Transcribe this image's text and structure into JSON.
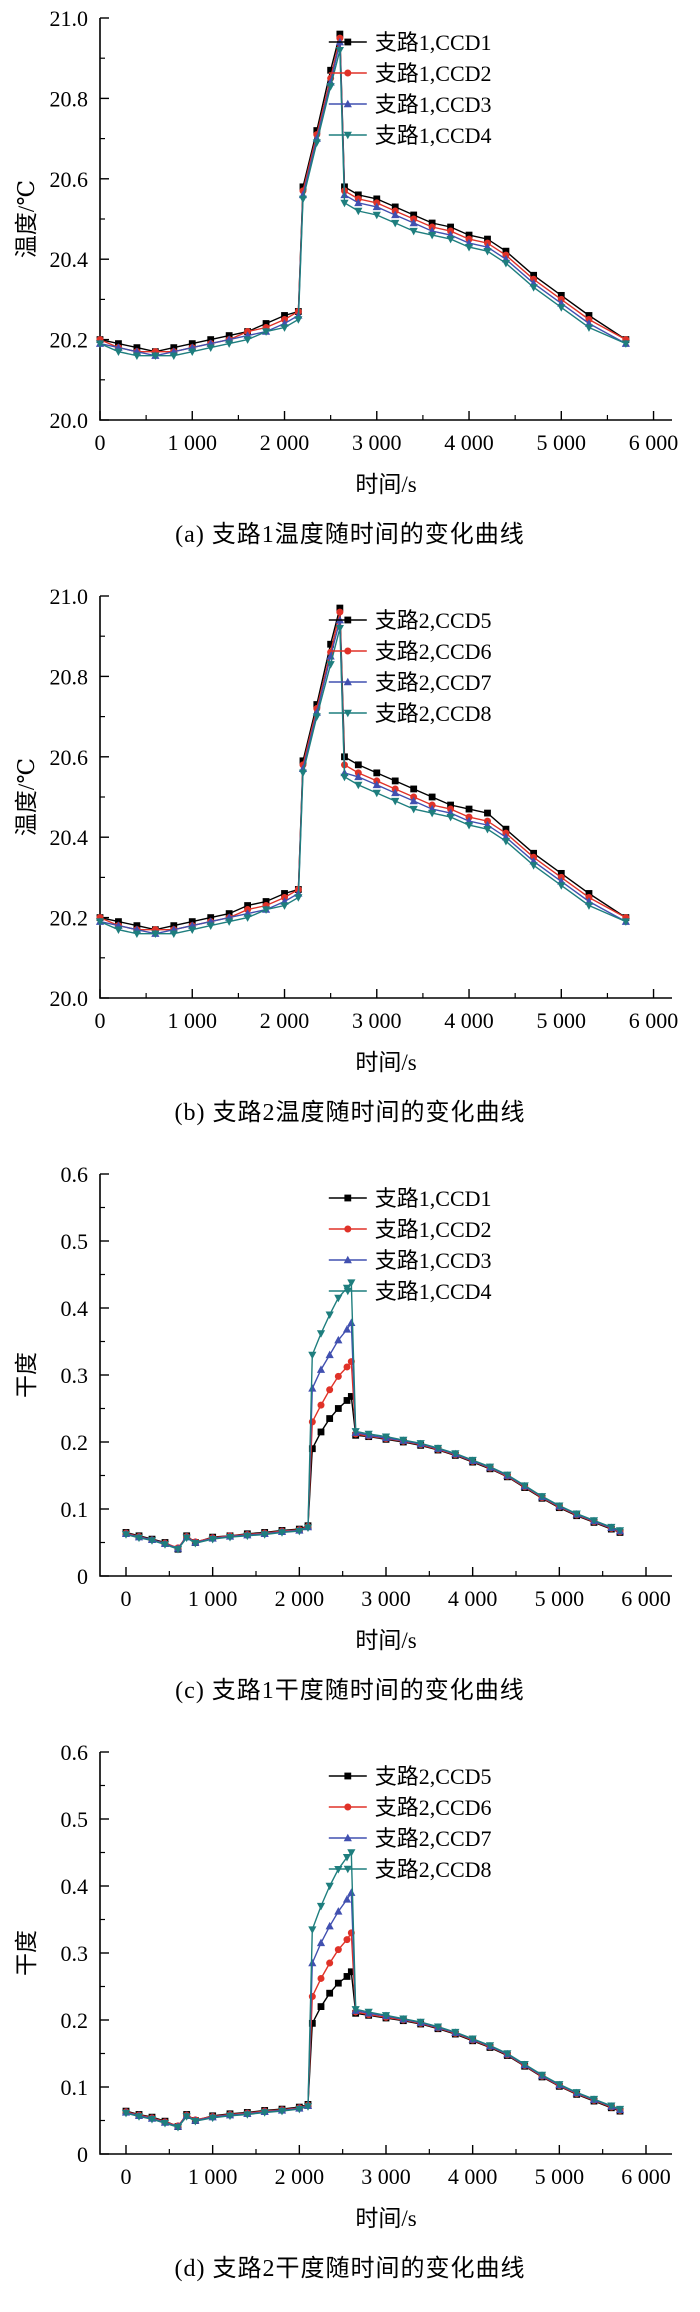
{
  "chart_data": [
    {
      "type": "line",
      "caption": "(a) 支路1温度随时间的变化曲线",
      "xlabel": "时间/s",
      "ylabel": "温度/℃",
      "xlim": [
        0,
        6200
      ],
      "ylim": [
        20.0,
        21.0
      ],
      "xticks": [
        0,
        1000,
        2000,
        3000,
        4000,
        5000,
        6000
      ],
      "xtick_labels": [
        "0",
        "1 000",
        "2 000",
        "3 000",
        "4 000",
        "5 000",
        "6 000"
      ],
      "yticks": [
        20.0,
        20.2,
        20.4,
        20.6,
        20.8,
        21.0
      ],
      "ytick_labels": [
        "20.0",
        "20.2",
        "20.4",
        "20.6",
        "20.8",
        "21.0"
      ],
      "legend_position": "top-right",
      "grid": false,
      "x": [
        0,
        200,
        400,
        600,
        800,
        1000,
        1200,
        1400,
        1600,
        1800,
        2000,
        2150,
        2200,
        2350,
        2500,
        2600,
        2650,
        2800,
        3000,
        3200,
        3400,
        3600,
        3800,
        4000,
        4200,
        4400,
        4700,
        5000,
        5300,
        5700
      ],
      "series": [
        {
          "name": "支路1,CCD1",
          "color": "#000000",
          "marker": "square",
          "values": [
            20.2,
            20.19,
            20.18,
            20.17,
            20.18,
            20.19,
            20.2,
            20.21,
            20.22,
            20.24,
            20.26,
            20.27,
            20.58,
            20.72,
            20.87,
            20.96,
            20.58,
            20.56,
            20.55,
            20.53,
            20.51,
            20.49,
            20.48,
            20.46,
            20.45,
            20.42,
            20.36,
            20.31,
            20.26,
            20.2
          ]
        },
        {
          "name": "支路1,CCD2",
          "color": "#e03228",
          "marker": "circle",
          "values": [
            20.2,
            20.18,
            20.17,
            20.17,
            20.17,
            20.18,
            20.19,
            20.2,
            20.22,
            20.23,
            20.25,
            20.27,
            20.57,
            20.71,
            20.85,
            20.95,
            20.57,
            20.55,
            20.54,
            20.52,
            20.5,
            20.48,
            20.47,
            20.45,
            20.44,
            20.41,
            20.35,
            20.3,
            20.25,
            20.2
          ]
        },
        {
          "name": "支路1,CCD3",
          "color": "#4150b0",
          "marker": "triangle-up",
          "values": [
            20.19,
            20.18,
            20.17,
            20.16,
            20.17,
            20.18,
            20.19,
            20.2,
            20.21,
            20.22,
            20.24,
            20.26,
            20.56,
            20.7,
            20.84,
            20.94,
            20.56,
            20.54,
            20.53,
            20.51,
            20.49,
            20.47,
            20.46,
            20.44,
            20.43,
            20.4,
            20.34,
            20.29,
            20.24,
            20.19
          ]
        },
        {
          "name": "支路1,CCD4",
          "color": "#1e7e7e",
          "marker": "triangle-down",
          "values": [
            20.19,
            20.17,
            20.16,
            20.16,
            20.16,
            20.17,
            20.18,
            20.19,
            20.2,
            20.22,
            20.23,
            20.25,
            20.55,
            20.69,
            20.83,
            20.92,
            20.54,
            20.52,
            20.51,
            20.49,
            20.47,
            20.46,
            20.45,
            20.43,
            20.42,
            20.39,
            20.33,
            20.28,
            20.23,
            20.19
          ]
        }
      ]
    },
    {
      "type": "line",
      "caption": "(b)  支路2温度随时间的变化曲线",
      "xlabel": "时间/s",
      "ylabel": "温度/℃",
      "xlim": [
        0,
        6200
      ],
      "ylim": [
        20.0,
        21.0
      ],
      "xticks": [
        0,
        1000,
        2000,
        3000,
        4000,
        5000,
        6000
      ],
      "xtick_labels": [
        "0",
        "1 000",
        "2 000",
        "3 000",
        "4 000",
        "5 000",
        "6 000"
      ],
      "yticks": [
        20.0,
        20.2,
        20.4,
        20.6,
        20.8,
        21.0
      ],
      "ytick_labels": [
        "20.0",
        "20.2",
        "20.4",
        "20.6",
        "20.8",
        "21.0"
      ],
      "legend_position": "top-right",
      "grid": false,
      "x": [
        0,
        200,
        400,
        600,
        800,
        1000,
        1200,
        1400,
        1600,
        1800,
        2000,
        2150,
        2200,
        2350,
        2500,
        2600,
        2650,
        2800,
        3000,
        3200,
        3400,
        3600,
        3800,
        4000,
        4200,
        4400,
        4700,
        5000,
        5300,
        5700
      ],
      "series": [
        {
          "name": "支路2,CCD5",
          "color": "#000000",
          "marker": "square",
          "values": [
            20.2,
            20.19,
            20.18,
            20.17,
            20.18,
            20.19,
            20.2,
            20.21,
            20.23,
            20.24,
            20.26,
            20.27,
            20.59,
            20.73,
            20.88,
            20.97,
            20.6,
            20.58,
            20.56,
            20.54,
            20.52,
            20.5,
            20.48,
            20.47,
            20.46,
            20.42,
            20.36,
            20.31,
            20.26,
            20.2
          ]
        },
        {
          "name": "支路2,CCD6",
          "color": "#e03228",
          "marker": "circle",
          "values": [
            20.2,
            20.18,
            20.17,
            20.17,
            20.17,
            20.18,
            20.19,
            20.2,
            20.22,
            20.23,
            20.25,
            20.27,
            20.58,
            20.72,
            20.86,
            20.96,
            20.58,
            20.56,
            20.54,
            20.52,
            20.5,
            20.48,
            20.47,
            20.45,
            20.44,
            20.41,
            20.35,
            20.3,
            20.25,
            20.2
          ]
        },
        {
          "name": "支路2,CCD7",
          "color": "#4150b0",
          "marker": "triangle-up",
          "values": [
            20.19,
            20.18,
            20.17,
            20.16,
            20.17,
            20.18,
            20.19,
            20.2,
            20.21,
            20.22,
            20.24,
            20.26,
            20.57,
            20.71,
            20.85,
            20.94,
            20.56,
            20.55,
            20.53,
            20.51,
            20.49,
            20.47,
            20.46,
            20.44,
            20.43,
            20.4,
            20.34,
            20.29,
            20.24,
            20.19
          ]
        },
        {
          "name": "支路2,CCD8",
          "color": "#1e7e7e",
          "marker": "triangle-down",
          "values": [
            20.19,
            20.17,
            20.16,
            20.16,
            20.16,
            20.17,
            20.18,
            20.19,
            20.2,
            20.22,
            20.23,
            20.25,
            20.56,
            20.7,
            20.83,
            20.92,
            20.55,
            20.53,
            20.51,
            20.49,
            20.47,
            20.46,
            20.45,
            20.43,
            20.42,
            20.39,
            20.33,
            20.28,
            20.23,
            20.19
          ]
        }
      ]
    },
    {
      "type": "line",
      "caption": "(c) 支路1干度随时间的变化曲线",
      "xlabel": "时间/s",
      "ylabel": "干度",
      "xlim": [
        -300,
        6300
      ],
      "ylim": [
        0,
        0.6
      ],
      "xticks": [
        0,
        1000,
        2000,
        3000,
        4000,
        5000,
        6000
      ],
      "xtick_labels": [
        "0",
        "1 000",
        "2 000",
        "3 000",
        "4 000",
        "5 000",
        "6 000"
      ],
      "yticks": [
        0,
        0.1,
        0.2,
        0.3,
        0.4,
        0.5,
        0.6
      ],
      "ytick_labels": [
        "0",
        "0.1",
        "0.2",
        "0.3",
        "0.4",
        "0.5",
        "0.6"
      ],
      "legend_position": "top-right",
      "grid": false,
      "x": [
        0,
        150,
        300,
        450,
        600,
        700,
        800,
        1000,
        1200,
        1400,
        1600,
        1800,
        2000,
        2100,
        2150,
        2250,
        2350,
        2450,
        2550,
        2600,
        2650,
        2800,
        3000,
        3200,
        3400,
        3600,
        3800,
        4000,
        4200,
        4400,
        4600,
        4800,
        5000,
        5200,
        5400,
        5600,
        5700
      ],
      "series": [
        {
          "name": "支路1,CCD1",
          "color": "#000000",
          "marker": "square",
          "values": [
            0.065,
            0.06,
            0.055,
            0.05,
            0.04,
            0.06,
            0.05,
            0.058,
            0.06,
            0.063,
            0.065,
            0.068,
            0.07,
            0.075,
            0.19,
            0.215,
            0.235,
            0.25,
            0.262,
            0.268,
            0.21,
            0.208,
            0.204,
            0.2,
            0.195,
            0.188,
            0.18,
            0.17,
            0.16,
            0.148,
            0.132,
            0.116,
            0.102,
            0.09,
            0.08,
            0.07,
            0.065
          ]
        },
        {
          "name": "支路1,CCD2",
          "color": "#e03228",
          "marker": "circle",
          "values": [
            0.064,
            0.059,
            0.054,
            0.049,
            0.042,
            0.059,
            0.051,
            0.057,
            0.06,
            0.062,
            0.064,
            0.067,
            0.069,
            0.074,
            0.23,
            0.255,
            0.278,
            0.298,
            0.312,
            0.32,
            0.212,
            0.209,
            0.205,
            0.201,
            0.196,
            0.189,
            0.181,
            0.171,
            0.161,
            0.149,
            0.133,
            0.117,
            0.103,
            0.091,
            0.081,
            0.071,
            0.066
          ]
        },
        {
          "name": "支路1,CCD3",
          "color": "#4150b0",
          "marker": "triangle-up",
          "values": [
            0.063,
            0.058,
            0.054,
            0.048,
            0.041,
            0.058,
            0.05,
            0.056,
            0.059,
            0.061,
            0.063,
            0.066,
            0.068,
            0.073,
            0.28,
            0.308,
            0.33,
            0.352,
            0.368,
            0.378,
            0.214,
            0.21,
            0.206,
            0.202,
            0.197,
            0.19,
            0.182,
            0.172,
            0.162,
            0.15,
            0.134,
            0.118,
            0.104,
            0.092,
            0.082,
            0.072,
            0.067
          ]
        },
        {
          "name": "支路1,CCD4",
          "color": "#1e7e7e",
          "marker": "triangle-down",
          "values": [
            0.062,
            0.057,
            0.053,
            0.047,
            0.04,
            0.057,
            0.049,
            0.055,
            0.058,
            0.06,
            0.062,
            0.065,
            0.067,
            0.072,
            0.33,
            0.362,
            0.39,
            0.415,
            0.43,
            0.438,
            0.216,
            0.212,
            0.208,
            0.203,
            0.198,
            0.191,
            0.183,
            0.173,
            0.163,
            0.151,
            0.135,
            0.119,
            0.105,
            0.093,
            0.083,
            0.073,
            0.068
          ]
        }
      ]
    },
    {
      "type": "line",
      "caption": "(d) 支路2干度随时间的变化曲线",
      "xlabel": "时间/s",
      "ylabel": "干度",
      "xlim": [
        -300,
        6300
      ],
      "ylim": [
        0,
        0.6
      ],
      "xticks": [
        0,
        1000,
        2000,
        3000,
        4000,
        5000,
        6000
      ],
      "xtick_labels": [
        "0",
        "1 000",
        "2 000",
        "3 000",
        "4 000",
        "5 000",
        "6 000"
      ],
      "yticks": [
        0,
        0.1,
        0.2,
        0.3,
        0.4,
        0.5,
        0.6
      ],
      "ytick_labels": [
        "0",
        "0.1",
        "0.2",
        "0.3",
        "0.4",
        "0.5",
        "0.6"
      ],
      "legend_position": "top-right",
      "grid": false,
      "x": [
        0,
        150,
        300,
        450,
        600,
        700,
        800,
        1000,
        1200,
        1400,
        1600,
        1800,
        2000,
        2100,
        2150,
        2250,
        2350,
        2450,
        2550,
        2600,
        2650,
        2800,
        3000,
        3200,
        3400,
        3600,
        3800,
        4000,
        4200,
        4400,
        4600,
        4800,
        5000,
        5200,
        5400,
        5600,
        5700
      ],
      "series": [
        {
          "name": "支路2,CCD5",
          "color": "#000000",
          "marker": "square",
          "values": [
            0.064,
            0.059,
            0.055,
            0.049,
            0.041,
            0.059,
            0.05,
            0.057,
            0.06,
            0.062,
            0.065,
            0.067,
            0.07,
            0.074,
            0.195,
            0.22,
            0.24,
            0.255,
            0.265,
            0.272,
            0.21,
            0.207,
            0.203,
            0.199,
            0.194,
            0.187,
            0.179,
            0.169,
            0.159,
            0.147,
            0.131,
            0.115,
            0.101,
            0.089,
            0.079,
            0.069,
            0.064
          ]
        },
        {
          "name": "支路2,CCD6",
          "color": "#e03228",
          "marker": "circle",
          "values": [
            0.063,
            0.058,
            0.054,
            0.048,
            0.042,
            0.058,
            0.051,
            0.056,
            0.059,
            0.061,
            0.064,
            0.066,
            0.069,
            0.073,
            0.235,
            0.262,
            0.285,
            0.305,
            0.32,
            0.33,
            0.212,
            0.208,
            0.204,
            0.2,
            0.195,
            0.188,
            0.18,
            0.17,
            0.16,
            0.148,
            0.132,
            0.116,
            0.102,
            0.09,
            0.08,
            0.07,
            0.065
          ]
        },
        {
          "name": "支路2,CCD7",
          "color": "#4150b0",
          "marker": "triangle-up",
          "values": [
            0.062,
            0.057,
            0.053,
            0.047,
            0.041,
            0.057,
            0.05,
            0.055,
            0.058,
            0.06,
            0.063,
            0.065,
            0.068,
            0.072,
            0.285,
            0.315,
            0.34,
            0.362,
            0.38,
            0.39,
            0.214,
            0.21,
            0.206,
            0.201,
            0.196,
            0.189,
            0.181,
            0.171,
            0.161,
            0.149,
            0.133,
            0.117,
            0.103,
            0.091,
            0.081,
            0.071,
            0.066
          ]
        },
        {
          "name": "支路2,CCD8",
          "color": "#1e7e7e",
          "marker": "triangle-down",
          "values": [
            0.061,
            0.056,
            0.052,
            0.046,
            0.04,
            0.056,
            0.049,
            0.054,
            0.057,
            0.059,
            0.062,
            0.064,
            0.067,
            0.071,
            0.335,
            0.37,
            0.4,
            0.425,
            0.443,
            0.45,
            0.216,
            0.212,
            0.207,
            0.202,
            0.197,
            0.19,
            0.182,
            0.172,
            0.162,
            0.15,
            0.134,
            0.118,
            0.104,
            0.092,
            0.082,
            0.072,
            0.067
          ]
        }
      ]
    }
  ]
}
